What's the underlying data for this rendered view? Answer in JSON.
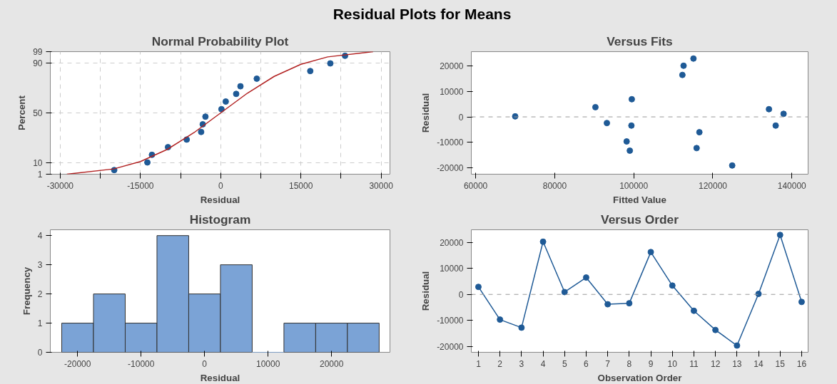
{
  "chart_data": [
    {
      "type": "scatter",
      "title": "Residual Plots for Means",
      "subtitle": "Normal Probability Plot",
      "xlabel": "Residual",
      "ylabel": "Percent",
      "marker": "circle",
      "grid": true,
      "xlim": [
        -31850,
        31650
      ],
      "ylim": [
        1,
        99
      ],
      "xticks": [
        -30000,
        {
          "value": -22500,
          "label": null
        },
        -15000,
        {
          "value": -7500,
          "label": null
        },
        0,
        {
          "value": 7500,
          "label": null
        },
        15000,
        {
          "value": 22500,
          "label": null
        },
        30000
      ],
      "yticks": [
        1,
        10,
        50,
        90,
        99
      ],
      "series": [
        {
          "color": "#1f5a96",
          "x": [
            -19900,
            -13700,
            -12850,
            -9850,
            -6350,
            -3650,
            -3350,
            -2850,
            150,
            950,
            2900,
            3700,
            6750,
            16750,
            20500,
            23250
          ],
          "values": [
            4.3,
            10.4,
            16.5,
            22.6,
            28.7,
            34.8,
            40.9,
            47.0,
            53.0,
            59.1,
            65.2,
            71.3,
            77.4,
            83.5,
            89.6,
            95.7
          ]
        },
        {
          "type": "line",
          "marker": "none",
          "color": "#b22222",
          "x": [
            -28750,
            -20000,
            -15000,
            -10000,
            -5000,
            0,
            5000,
            10000,
            15000,
            20000,
            28500
          ],
          "values": [
            1,
            5.2,
            11.1,
            20.8,
            34.2,
            50,
            65.8,
            79.2,
            88.9,
            94.8,
            99
          ]
        }
      ]
    },
    {
      "type": "scatter",
      "title": "Versus Fits",
      "xlabel": "Fitted Value",
      "ylabel": "Residual",
      "marker": "circle",
      "xlim": [
        58900,
        144100
      ],
      "ylim": [
        -22400,
        25500
      ],
      "xticks": [
        60000,
        80000,
        100000,
        120000,
        140000
      ],
      "yticks": [
        -20000,
        -10000,
        0,
        10000,
        20000
      ],
      "ref_lines": [
        {
          "axis": "y",
          "value": 0,
          "color": "#999999",
          "line_style": "dashed"
        }
      ],
      "series": [
        {
          "color": "#1f5a96",
          "x": [
            70000,
            90300,
            93200,
            98200,
            99000,
            99500,
            99400,
            112300,
            112600,
            115100,
            115900,
            116600,
            124900,
            134200,
            135900,
            137900
          ],
          "values": [
            200,
            3800,
            -2400,
            -9600,
            -13200,
            6900,
            -3400,
            16400,
            20000,
            22800,
            -12200,
            -6000,
            -19000,
            3000,
            -3400,
            1200
          ]
        }
      ]
    },
    {
      "type": "histogram",
      "title": "Histogram",
      "xlabel": "Residual",
      "ylabel": "Frequency",
      "color": "#7ba3d6",
      "xlim": [
        -24300,
        29200
      ],
      "ylim": [
        0,
        4.2
      ],
      "xticks": [
        -20000,
        -10000,
        0,
        10000,
        20000
      ],
      "yticks": [
        0,
        1,
        2,
        3,
        4
      ],
      "bins": [
        -22500,
        -17500,
        -12500,
        -7500,
        -2500,
        2500,
        7500,
        12500,
        17500,
        22500,
        27500
      ],
      "values": [
        1,
        2,
        1,
        4,
        2,
        3,
        0,
        1,
        1,
        1
      ]
    },
    {
      "type": "line",
      "title": "Versus Order",
      "xlabel": "Observation Order",
      "ylabel": "Residual",
      "marker": "circle",
      "xlim": [
        0.67,
        16.3
      ],
      "ylim": [
        -22300,
        24900
      ],
      "xticks": [
        1,
        2,
        3,
        4,
        5,
        6,
        7,
        8,
        9,
        10,
        11,
        12,
        13,
        14,
        15,
        16
      ],
      "yticks": [
        -20000,
        -10000,
        0,
        10000,
        20000
      ],
      "ref_lines": [
        {
          "axis": "y",
          "value": 0,
          "color": "#999999",
          "line_style": "dashed"
        }
      ],
      "x": [
        1,
        2,
        3,
        4,
        5,
        6,
        7,
        8,
        9,
        10,
        11,
        12,
        13,
        14,
        15,
        16
      ],
      "series": [
        {
          "color": "#1f5a96",
          "values": [
            2900,
            -9700,
            -12800,
            20300,
            900,
            6500,
            -3800,
            -3400,
            16300,
            3400,
            -6300,
            -13700,
            -19700,
            200,
            22900,
            -2900
          ]
        }
      ]
    }
  ]
}
